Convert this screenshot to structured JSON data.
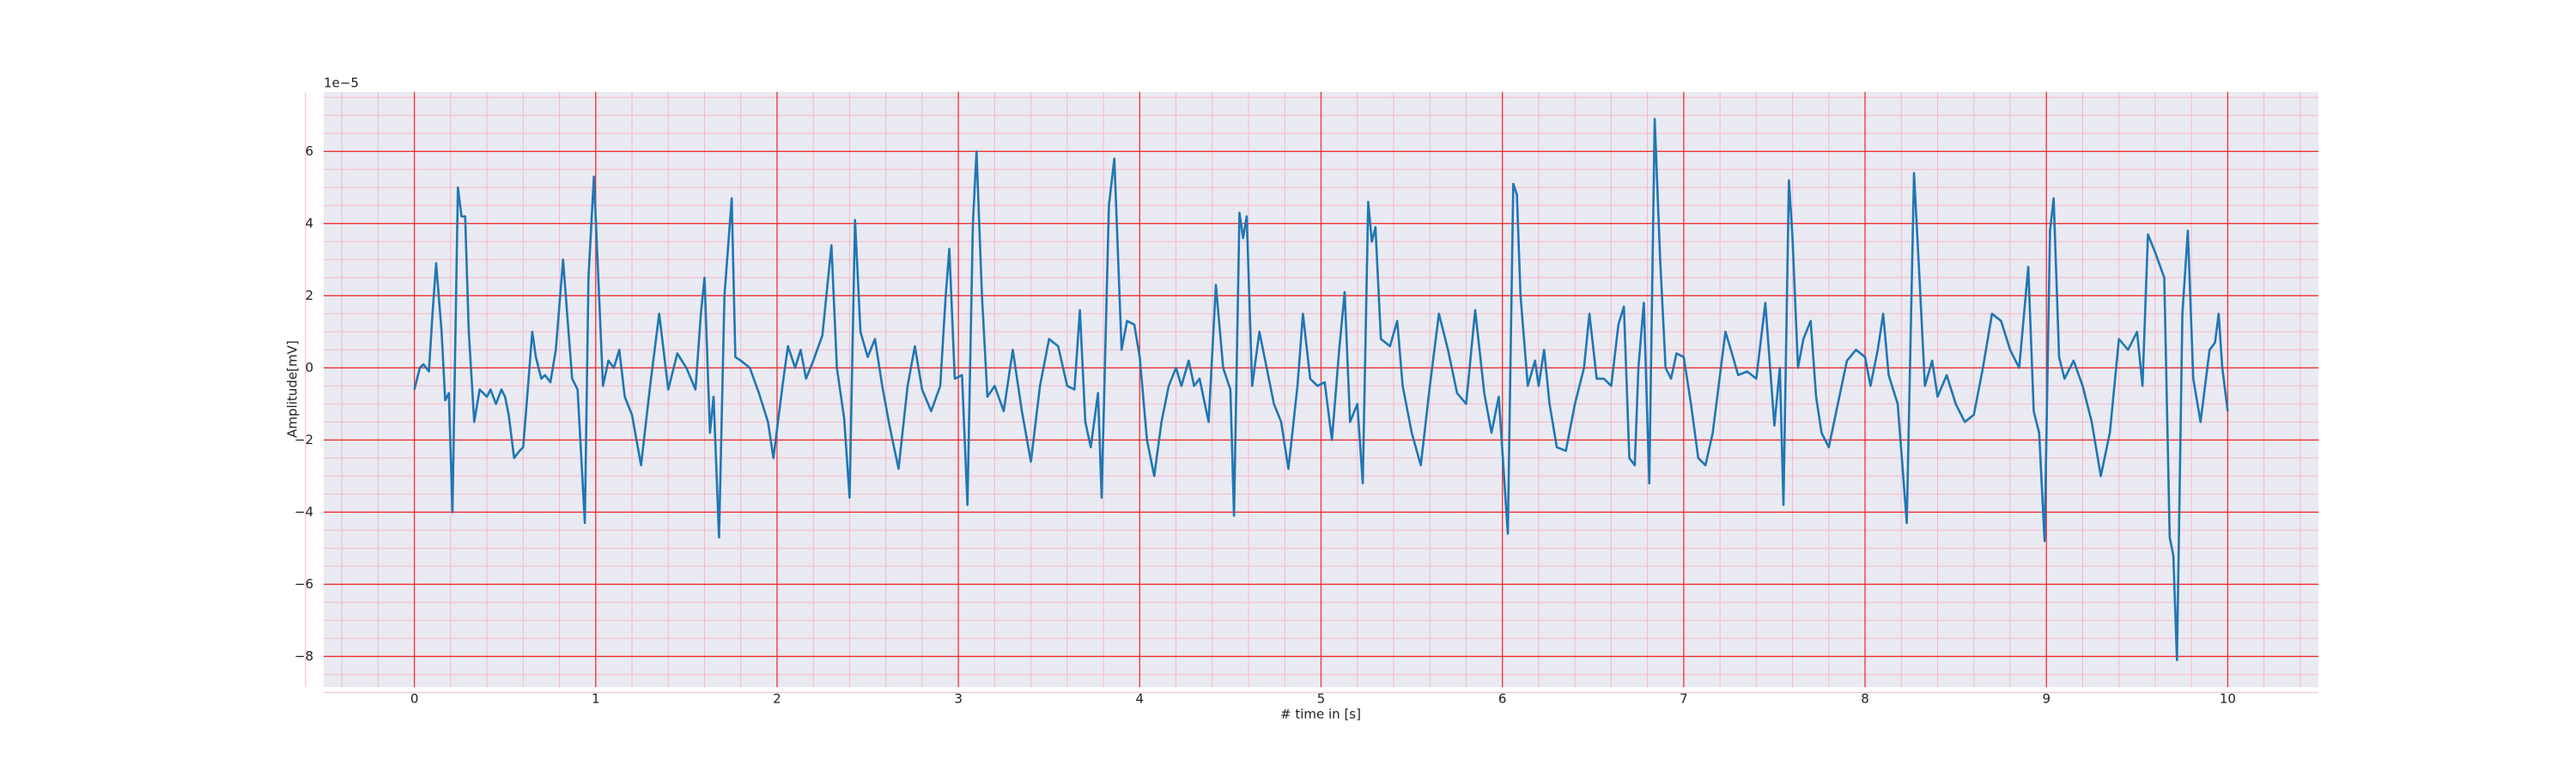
{
  "chart_data": {
    "type": "line",
    "xlabel": "# time in [s]",
    "ylabel": "Amplitude[mV]",
    "y_offset_label": "1e−5",
    "x": [
      0,
      0.03,
      0.05,
      0.08,
      0.1,
      0.12,
      0.15,
      0.17,
      0.19,
      0.21,
      0.24,
      0.26,
      0.28,
      0.3,
      0.33,
      0.36,
      0.4,
      0.42,
      0.45,
      0.48,
      0.5,
      0.52,
      0.55,
      0.58,
      0.6,
      0.63,
      0.65,
      0.67,
      0.7,
      0.72,
      0.75,
      0.78,
      0.82,
      0.85,
      0.87,
      0.9,
      0.94,
      0.96,
      0.99,
      1.01,
      1.04,
      1.07,
      1.1,
      1.13,
      1.16,
      1.2,
      1.25,
      1.3,
      1.35,
      1.4,
      1.45,
      1.5,
      1.55,
      1.58,
      1.6,
      1.63,
      1.65,
      1.68,
      1.71,
      1.75,
      1.77,
      1.8,
      1.85,
      1.9,
      1.95,
      1.98,
      2.03,
      2.06,
      2.1,
      2.13,
      2.16,
      2.2,
      2.25,
      2.3,
      2.33,
      2.37,
      2.4,
      2.43,
      2.46,
      2.5,
      2.54,
      2.58,
      2.62,
      2.67,
      2.72,
      2.76,
      2.8,
      2.85,
      2.9,
      2.93,
      2.95,
      2.98,
      3.02,
      3.05,
      3.08,
      3.1,
      3.13,
      3.16,
      3.2,
      3.25,
      3.3,
      3.35,
      3.4,
      3.45,
      3.5,
      3.55,
      3.6,
      3.64,
      3.67,
      3.7,
      3.73,
      3.77,
      3.79,
      3.83,
      3.86,
      3.9,
      3.93,
      3.97,
      4,
      4.04,
      4.08,
      4.12,
      4.16,
      4.2,
      4.23,
      4.27,
      4.3,
      4.33,
      4.38,
      4.42,
      4.46,
      4.5,
      4.52,
      4.55,
      4.57,
      4.59,
      4.62,
      4.66,
      4.7,
      4.74,
      4.78,
      4.82,
      4.87,
      4.9,
      4.94,
      4.98,
      5.02,
      5.06,
      5.1,
      5.13,
      5.16,
      5.2,
      5.23,
      5.26,
      5.28,
      5.3,
      5.33,
      5.38,
      5.42,
      5.45,
      5.5,
      5.55,
      5.6,
      5.65,
      5.7,
      5.75,
      5.8,
      5.85,
      5.9,
      5.94,
      5.98,
      6.03,
      6.06,
      6.08,
      6.1,
      6.14,
      6.18,
      6.2,
      6.23,
      6.26,
      6.3,
      6.35,
      6.4,
      6.45,
      6.48,
      6.52,
      6.56,
      6.6,
      6.64,
      6.67,
      6.7,
      6.73,
      6.75,
      6.78,
      6.81,
      6.84,
      6.87,
      6.9,
      6.93,
      6.96,
      7,
      7.04,
      7.08,
      7.12,
      7.16,
      7.2,
      7.23,
      7.26,
      7.3,
      7.35,
      7.4,
      7.45,
      7.5,
      7.53,
      7.55,
      7.58,
      7.6,
      7.63,
      7.66,
      7.7,
      7.73,
      7.76,
      7.8,
      7.85,
      7.9,
      7.95,
      8,
      8.03,
      8.07,
      8.1,
      8.13,
      8.18,
      8.23,
      8.27,
      8.3,
      8.33,
      8.37,
      8.4,
      8.45,
      8.5,
      8.55,
      8.6,
      8.65,
      8.7,
      8.75,
      8.8,
      8.85,
      8.9,
      8.93,
      8.96,
      8.99,
      9.02,
      9.04,
      9.07,
      9.1,
      9.15,
      9.2,
      9.25,
      9.3,
      9.35,
      9.4,
      9.45,
      9.5,
      9.53,
      9.56,
      9.6,
      9.65,
      9.68,
      9.7,
      9.72,
      9.75,
      9.78,
      9.81,
      9.85,
      9.9,
      9.93,
      9.95,
      9.97,
      10
    ],
    "series": [
      {
        "color": "#1f77b4",
        "values": [
          -0.6,
          0,
          0.1,
          -0.1,
          1.5,
          2.9,
          1,
          -0.9,
          -0.7,
          -4,
          5,
          4.2,
          4.2,
          1,
          -1.5,
          -0.6,
          -0.8,
          -0.6,
          -1,
          -0.6,
          -0.8,
          -1.3,
          -2.5,
          -2.3,
          -2.2,
          -0.3,
          1,
          0.3,
          -0.3,
          -0.2,
          -0.4,
          0.5,
          3,
          1,
          -0.3,
          -0.6,
          -4.3,
          2.5,
          5.3,
          3,
          -0.5,
          0.2,
          0,
          0.5,
          -0.8,
          -1.3,
          -2.7,
          -0.5,
          1.5,
          -0.6,
          0.4,
          0,
          -0.6,
          1.5,
          2.5,
          -1.8,
          -0.8,
          -4.7,
          2,
          4.7,
          0.3,
          0.2,
          0,
          -0.7,
          -1.5,
          -2.5,
          -0.5,
          0.6,
          0,
          0.5,
          -0.3,
          0.2,
          0.9,
          3.4,
          0,
          -1.4,
          -3.6,
          4.1,
          1,
          0.3,
          0.8,
          -0.5,
          -1.6,
          -2.8,
          -0.5,
          0.6,
          -0.6,
          -1.2,
          -0.5,
          2,
          3.3,
          -0.3,
          -0.2,
          -3.8,
          4,
          6,
          2,
          -0.8,
          -0.5,
          -1.2,
          0.5,
          -1.2,
          -2.6,
          -0.5,
          0.8,
          0.6,
          -0.5,
          -0.6,
          1.6,
          -1.5,
          -2.2,
          -0.7,
          -3.6,
          4.5,
          5.8,
          0.5,
          1.3,
          1.2,
          0.3,
          -2,
          -3,
          -1.5,
          -0.5,
          0,
          -0.5,
          0.2,
          -0.5,
          -0.3,
          -1.5,
          2.3,
          0,
          -0.6,
          -4.1,
          4.3,
          3.6,
          4.2,
          -0.5,
          1,
          0,
          -1,
          -1.5,
          -2.8,
          -0.5,
          1.5,
          -0.3,
          -0.5,
          -0.4,
          -2,
          0.5,
          2.1,
          -1.5,
          -1,
          -3.2,
          4.6,
          3.5,
          3.9,
          0.8,
          0.6,
          1.3,
          -0.5,
          -1.8,
          -2.7,
          -0.5,
          1.5,
          0.5,
          -0.7,
          -1,
          1.6,
          -0.7,
          -1.8,
          -0.8,
          -4.6,
          5.1,
          4.8,
          2,
          -0.5,
          0.2,
          -0.5,
          0.5,
          -1,
          -2.2,
          -2.3,
          -1,
          0,
          1.5,
          -0.3,
          -0.3,
          -0.5,
          1.2,
          1.7,
          -2.5,
          -2.7,
          0,
          1.8,
          -3.2,
          6.9,
          3,
          0,
          -0.3,
          0.4,
          0.3,
          -1,
          -2.5,
          -2.7,
          -1.8,
          -0.2,
          1,
          0.5,
          -0.2,
          -0.1,
          -0.3,
          1.8,
          -1.6,
          0,
          -3.8,
          5.2,
          3.6,
          0,
          0.8,
          1.3,
          -0.8,
          -1.8,
          -2.2,
          -1,
          0.2,
          0.5,
          0.3,
          -0.5,
          0.5,
          1.5,
          -0.2,
          -1,
          -4.3,
          5.4,
          2.5,
          -0.5,
          0.2,
          -0.8,
          -0.2,
          -1,
          -1.5,
          -1.3,
          0,
          1.5,
          1.3,
          0.5,
          0,
          2.8,
          -1.2,
          -1.8,
          -4.8,
          3.8,
          4.7,
          0.3,
          -0.3,
          0.2,
          -0.5,
          -1.5,
          -3,
          -1.8,
          0.8,
          0.5,
          1,
          -0.5,
          3.7,
          3.2,
          2.5,
          -4.7,
          -5.2,
          -8.1,
          1.5,
          3.8,
          -0.3,
          -1.5,
          0.5,
          0.7,
          1.5,
          0,
          -1.2
        ]
      }
    ],
    "xlim": [
      -0.5,
      10.5
    ],
    "xticks": [
      0,
      1,
      2,
      3,
      4,
      5,
      6,
      7,
      8,
      9,
      10
    ],
    "ylim": [
      -8.85,
      7.65
    ],
    "yticks": [
      {
        "value": -8,
        "label": "−8"
      },
      {
        "value": -6,
        "label": "−6"
      },
      {
        "value": -4,
        "label": "−4"
      },
      {
        "value": -2,
        "label": "−2"
      },
      0,
      2,
      4,
      6
    ],
    "grid": true,
    "minor_grid": true,
    "background": "#eaeaf2",
    "grid_color": "#ee3333",
    "minor_grid_color": "#f5b8c4"
  }
}
